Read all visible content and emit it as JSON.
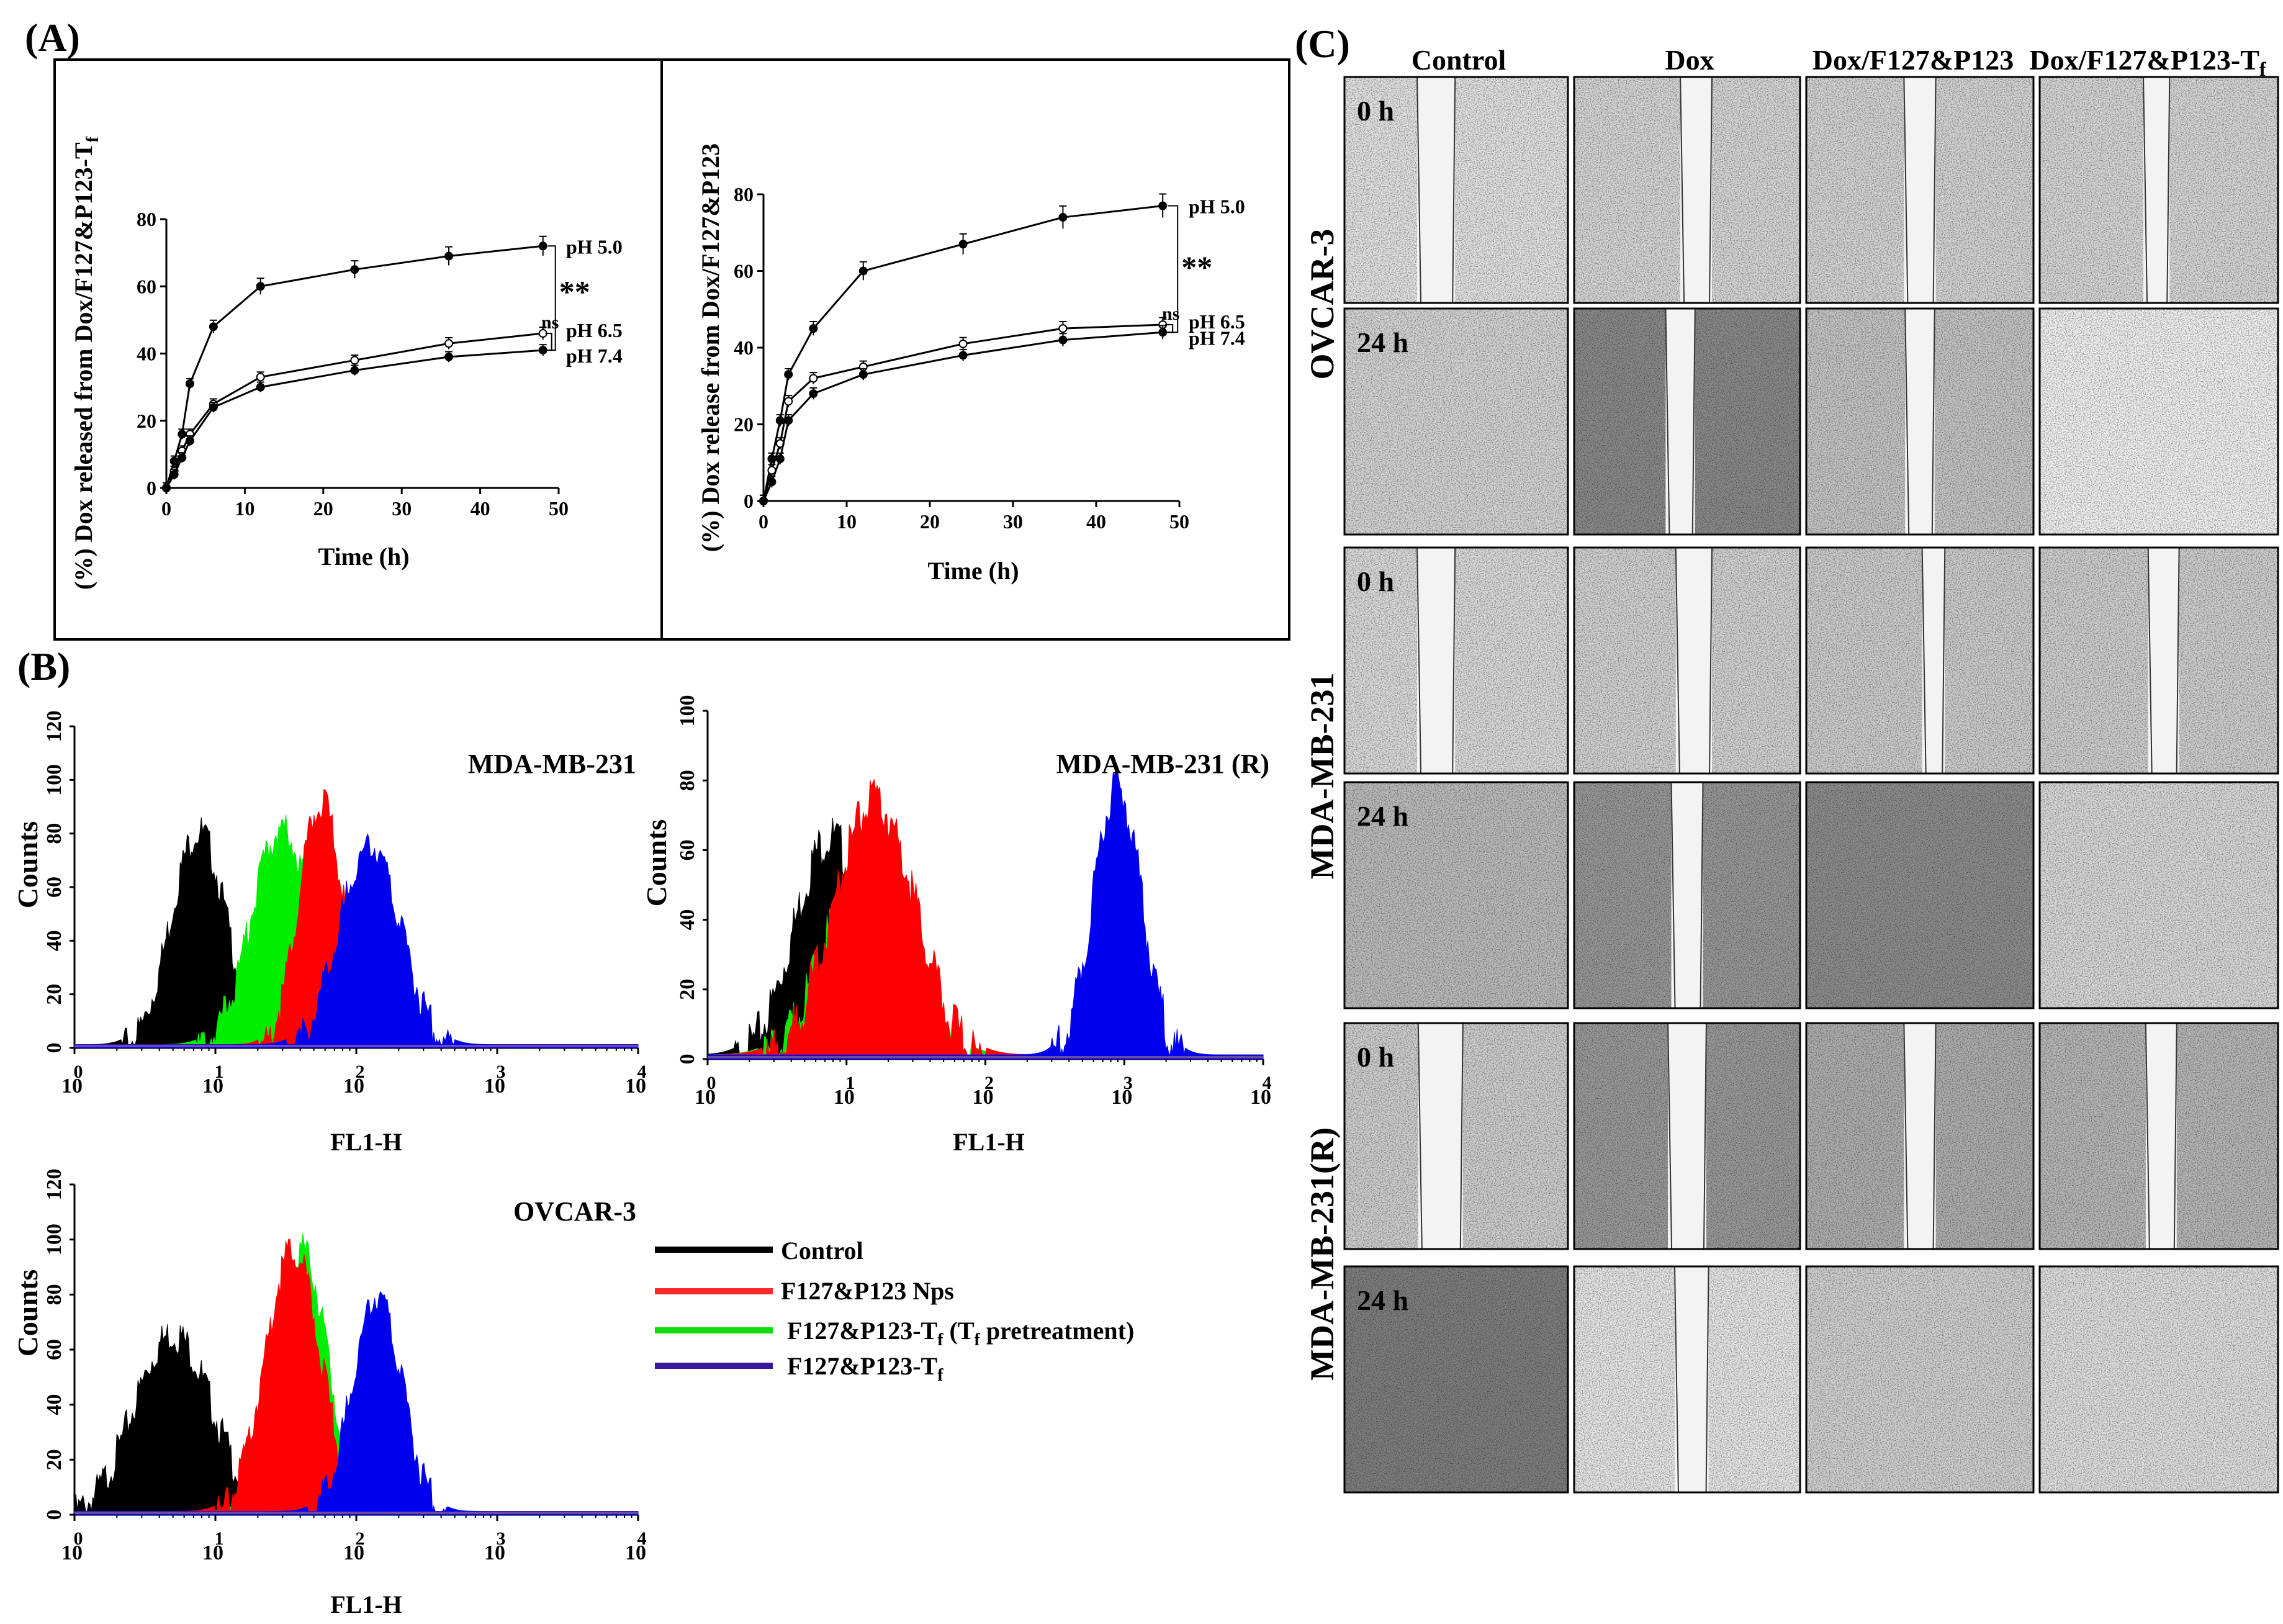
{
  "panels": {
    "a": "(A)",
    "b": "(B)",
    "c": "(C)"
  },
  "panel_a": {
    "charts": [
      {
        "type": "line",
        "ylabel": "(%) Dox released from Dox/F127&P123-Tf",
        "ylabel_main": "(%) Dox released from Dox/F127&P123-T",
        "ylabel_sub": "f",
        "xlabel": "Time (h)",
        "xlim": [
          0,
          50
        ],
        "ylim": [
          0,
          80
        ],
        "xticks": [
          "0",
          "10",
          "20",
          "30",
          "40",
          "50"
        ],
        "yticks": [
          "0",
          "20",
          "40",
          "60",
          "80"
        ],
        "x": [
          0,
          1,
          2,
          3,
          6,
          12,
          24,
          36,
          48
        ],
        "series": [
          {
            "name": "pH 5.0",
            "values": [
              0,
              8,
              16,
              31,
              48,
              60,
              65,
              69,
              72
            ]
          },
          {
            "name": "pH 6.5",
            "values": [
              0,
              5,
              11,
              16,
              25,
              33,
              38,
              43,
              46
            ]
          },
          {
            "name": "pH 7.4",
            "values": [
              0,
              4,
              9,
              14,
              24,
              30,
              35,
              39,
              41
            ]
          }
        ],
        "annotations": {
          "sig": "**",
          "ns": "ns"
        }
      },
      {
        "type": "line",
        "ylabel": "(%) Dox release from Dox/F127&P123",
        "xlabel": "Time (h)",
        "xlim": [
          0,
          50
        ],
        "ylim": [
          0,
          80
        ],
        "xticks": [
          "0",
          "10",
          "20",
          "30",
          "40",
          "50"
        ],
        "yticks": [
          "0",
          "20",
          "40",
          "60",
          "80"
        ],
        "x": [
          0,
          1,
          2,
          3,
          6,
          12,
          24,
          36,
          48
        ],
        "series": [
          {
            "name": "pH 5.0",
            "values": [
              0,
              11,
              21,
              33,
              45,
              60,
              67,
              74,
              77
            ]
          },
          {
            "name": "pH 6.5",
            "values": [
              0,
              8,
              15,
              26,
              32,
              35,
              41,
              45,
              46
            ]
          },
          {
            "name": "pH 7.4",
            "values": [
              0,
              5,
              11,
              21,
              28,
              33,
              38,
              42,
              44
            ]
          }
        ],
        "annotations": {
          "sig": "**",
          "ns": "ns"
        }
      }
    ]
  },
  "panel_b": {
    "histograms": [
      {
        "title": "MDA-MB-231",
        "ylabel": "Counts",
        "xlabel": "FL1-H",
        "yticks": [
          "0",
          "20",
          "40",
          "60",
          "80",
          "100",
          "120"
        ],
        "xdecades": [
          "0",
          "1",
          "2",
          "3",
          "4"
        ],
        "xbase": "10",
        "series": [
          {
            "name": "Control",
            "color": "#000000",
            "peak_log": 0.88,
            "peak_count": 83
          },
          {
            "name": "F127&P123 Nps",
            "color": "#ff0000",
            "peak_log": 1.75,
            "peak_count": 94
          },
          {
            "name": "F127&P123-Tf (Tf pretreatment)",
            "color": "#00ee00",
            "peak_log": 1.47,
            "peak_count": 84
          },
          {
            "name": "F127&P123-Tf",
            "color": "#0000ee",
            "peak_log": 2.1,
            "peak_count": 78
          }
        ]
      },
      {
        "title": "MDA-MB-231 (R)",
        "ylabel": "Counts",
        "xlabel": "FL1-H",
        "yticks": [
          "0",
          "20",
          "40",
          "60",
          "80",
          "100"
        ],
        "xdecades": [
          "0",
          "1",
          "2",
          "3",
          "4"
        ],
        "xbase": "10",
        "series": [
          {
            "name": "Control",
            "color": "#000000",
            "peak_log": 0.88,
            "peak_count": 66
          },
          {
            "name": "F127&P123 Nps",
            "color": "#ff0000",
            "peak_log": 1.2,
            "peak_count": 76
          },
          {
            "name": "F127&P123-Tf (Tf pretreatment)",
            "color": "#00ee00",
            "peak_log": 1.15,
            "peak_count": 60
          },
          {
            "name": "F127&P123-Tf",
            "color": "#0000ee",
            "peak_log": 2.95,
            "peak_count": 80
          }
        ]
      },
      {
        "title": "OVCAR-3",
        "ylabel": "Counts",
        "xlabel": "FL1-H",
        "yticks": [
          "0",
          "20",
          "40",
          "60",
          "80",
          "100",
          "120"
        ],
        "xdecades": [
          "0",
          "1",
          "2",
          "3",
          "4"
        ],
        "xbase": "10",
        "series": [
          {
            "name": "Control",
            "color": "#000000",
            "peak_log": 0.7,
            "peak_count": 68
          },
          {
            "name": "F127&P123 Nps",
            "color": "#ff0000",
            "peak_log": 1.55,
            "peak_count": 98
          },
          {
            "name": "F127&P123-Tf (Tf pretreatment)",
            "color": "#00ee00",
            "peak_log": 1.62,
            "peak_count": 98
          },
          {
            "name": "F127&P123-Tf",
            "color": "#0000ee",
            "peak_log": 2.15,
            "peak_count": 82
          }
        ]
      }
    ],
    "legend": [
      {
        "label": "Control",
        "main": "Control",
        "sub": "",
        "tail": "",
        "color": "#000000"
      },
      {
        "label": "F127&P123 Nps",
        "main": "F127&P123 Nps",
        "sub": "",
        "tail": "",
        "color": "#ff2a2a"
      },
      {
        "label": "F127&P123-Tf (Tf pretreatment)",
        "main": "F127&P123-T",
        "sub": "f",
        "tail": " (T",
        "sub2": "f",
        "tail2": " pretreatment)",
        "color": "#11dd11"
      },
      {
        "label": "F127&P123-Tf",
        "main": "F127&P123-T",
        "sub": "f",
        "tail": "",
        "color": "#3a1a9a"
      }
    ]
  },
  "panel_c": {
    "columns": [
      {
        "label": "Control"
      },
      {
        "label": "Dox"
      },
      {
        "label": "Dox/F127&P123"
      },
      {
        "label": "Dox/F127&P123-Tf",
        "main": "Dox/F127&P123-T",
        "sub": "f"
      }
    ],
    "cell_lines": [
      "OVCAR-3",
      "MDA-MB-231",
      "MDA-MB-231(R)"
    ],
    "time_labels": [
      "0 h",
      "24 h"
    ]
  }
}
